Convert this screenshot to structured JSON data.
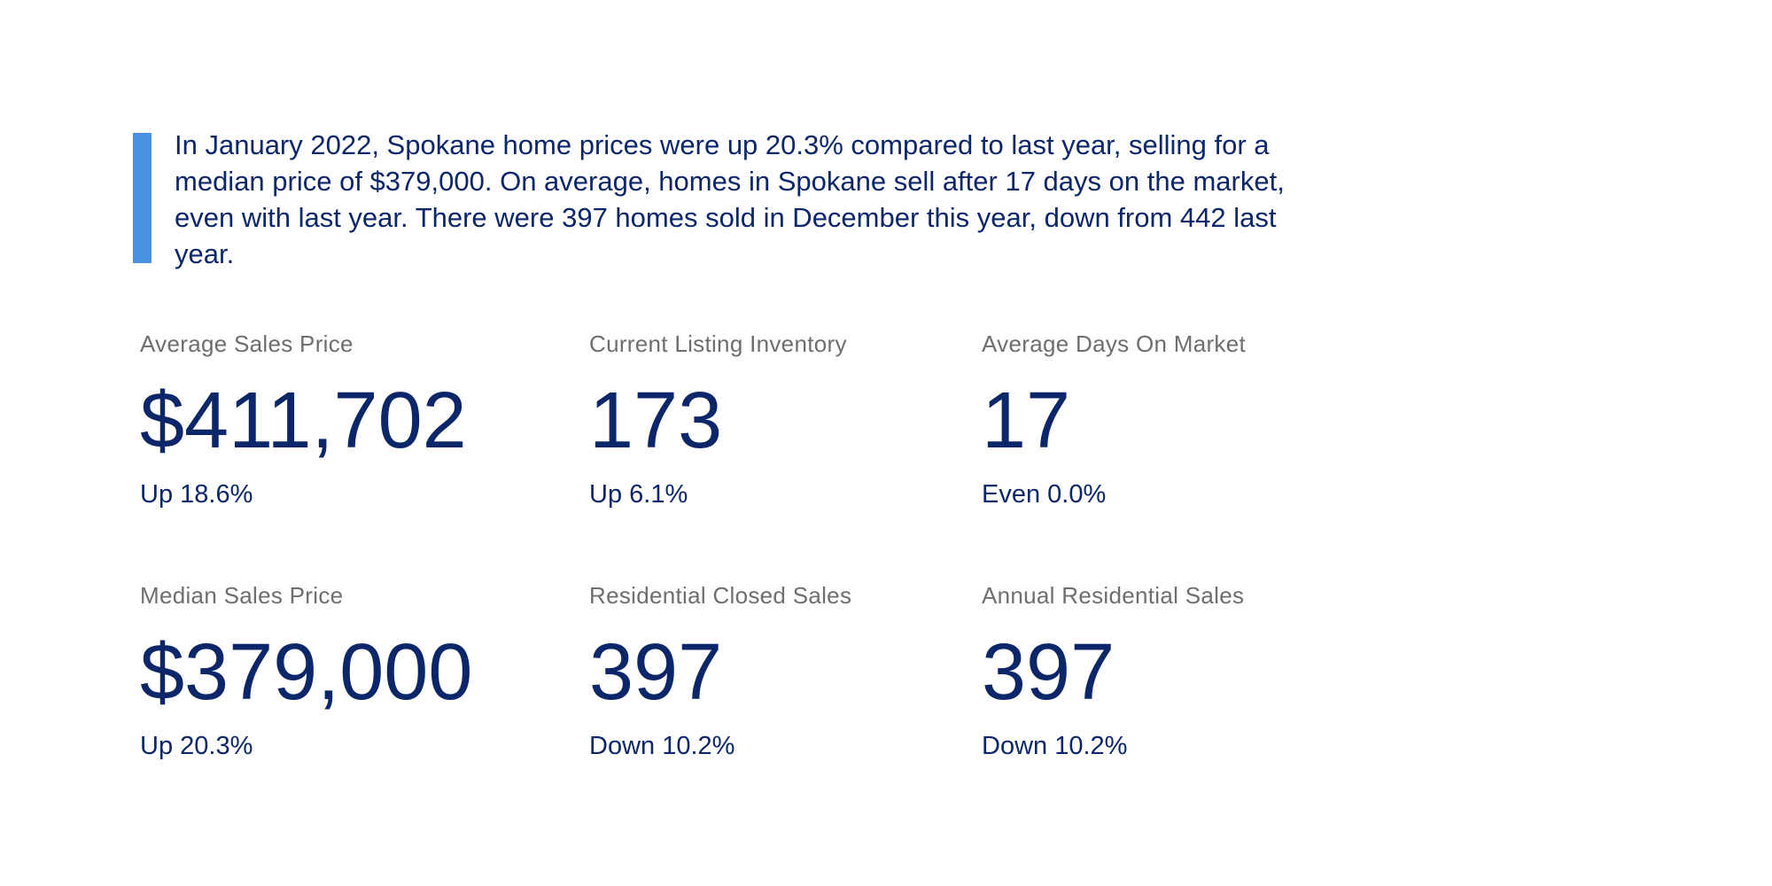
{
  "summary": "In January 2022, Spokane home prices were up 20.3% compared to last year, selling for a median price of $379,000. On average, homes in Spokane sell after 17 days on the market, even with last year. There were 397 homes sold in December this year, down from 442 last year.",
  "colors": {
    "accent": "#4a90e2",
    "primary_text": "#0c266a",
    "label_text": "#6e6e6e"
  },
  "stats": [
    {
      "label": "Average Sales Price",
      "value": "$411,702",
      "change": "Up 18.6%"
    },
    {
      "label": "Current Listing Inventory",
      "value": "173",
      "change": "Up 6.1%"
    },
    {
      "label": "Average Days On Market",
      "value": "17",
      "change": "Even 0.0%"
    },
    {
      "label": "Median Sales Price",
      "value": "$379,000",
      "change": "Up 20.3%"
    },
    {
      "label": "Residential Closed Sales",
      "value": "397",
      "change": "Down 10.2%"
    },
    {
      "label": "Annual Residential Sales",
      "value": "397",
      "change": "Down 10.2%"
    }
  ]
}
